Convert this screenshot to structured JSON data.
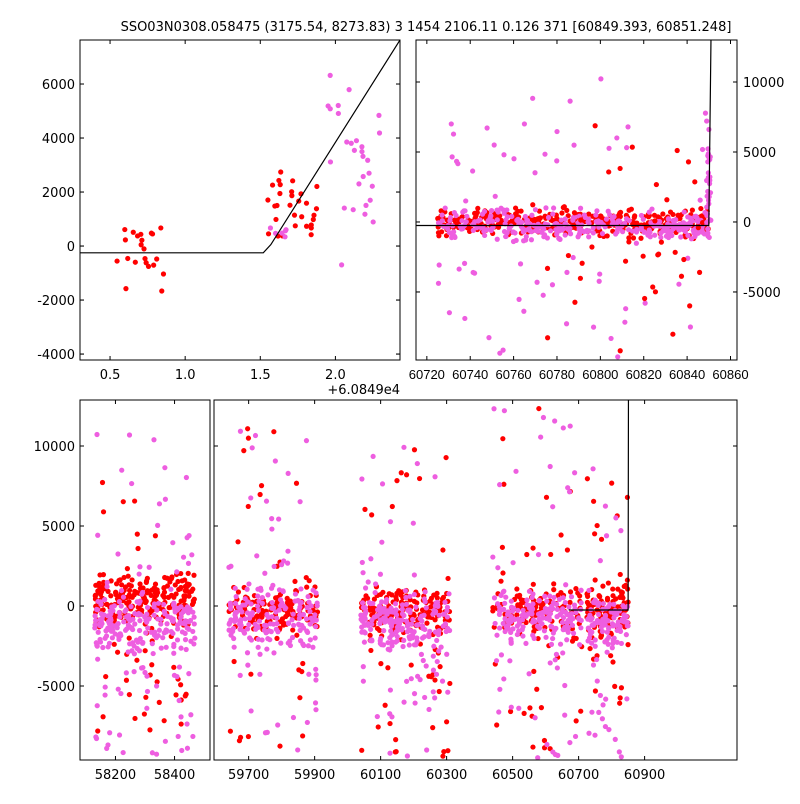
{
  "title": "SSO03N0308.058475 (3175.54, 8273.83)   3 1454 2106.11 0.126 371 [60849.393, 60851.248]",
  "offset_label": "+6.0849e4",
  "colors": {
    "red": "#ff0000",
    "pink": "#ee5ee0",
    "line": "#000000"
  },
  "chart_data": [
    {
      "type": "scatter",
      "name": "phase-panel",
      "xlim": [
        0.3,
        2.43
      ],
      "ylim": [
        -4220,
        7630
      ],
      "xticks": [
        "0.5",
        "1.0",
        "1.5",
        "2.0"
      ],
      "xtick_values": [
        0.5,
        1.0,
        1.5,
        2.0
      ],
      "yticks": [
        "-4000",
        "-2000",
        "0",
        "2000",
        "4000",
        "6000"
      ],
      "ytick_values": [
        -4000,
        -2000,
        0,
        2000,
        4000,
        6000
      ],
      "clusters": [
        {
          "color": "red",
          "x": [
            0.5,
            0.92
          ],
          "y": [
            -1700,
            1000
          ],
          "n": 22
        },
        {
          "color": "red",
          "x": [
            1.52,
            1.88
          ],
          "y": [
            300,
            2400
          ],
          "n": 30
        },
        {
          "color": "pink",
          "x": [
            1.55,
            1.7
          ],
          "y": [
            400,
            800
          ],
          "n": 6
        },
        {
          "color": "pink",
          "x": [
            1.95,
            2.3
          ],
          "y": [
            400,
            6900
          ],
          "n": 30
        }
      ],
      "model_line": [
        [
          0.3,
          -250
        ],
        [
          1.52,
          -250
        ],
        [
          1.57,
          50
        ],
        [
          2.43,
          7630
        ]
      ]
    },
    {
      "type": "scatter",
      "name": "time-zoom-panel",
      "xlim": [
        60715,
        60863
      ],
      "ylim": [
        -9860,
        13000
      ],
      "xticks": [
        "60720",
        "60740",
        "60760",
        "60780",
        "60800",
        "60820",
        "60840",
        "60860"
      ],
      "xtick_values": [
        60720,
        60740,
        60760,
        60780,
        60800,
        60820,
        60840,
        60860
      ],
      "yticks": [
        "-5000",
        "0",
        "5000",
        "10000"
      ],
      "ytick_values": [
        -5000,
        0,
        5000,
        10000
      ],
      "clusters": [
        {
          "color": "red",
          "x": [
            60725,
            60850
          ],
          "y": [
            -800,
            800
          ],
          "n": 350
        },
        {
          "color": "pink",
          "x": [
            60725,
            60850
          ],
          "y": [
            -1200,
            600
          ],
          "n": 300
        },
        {
          "color": "pink",
          "x": [
            60725,
            60850
          ],
          "y": [
            -8500,
            8500
          ],
          "n": 70
        },
        {
          "color": "red",
          "x": [
            60770,
            60850
          ],
          "y": [
            -7000,
            5000
          ],
          "n": 40
        },
        {
          "color": "pink",
          "x": [
            60849,
            60851
          ],
          "y": [
            -500,
            7000
          ],
          "n": 30
        }
      ],
      "model_line": [
        [
          60715,
          -250
        ],
        [
          60850,
          -250
        ],
        [
          60851,
          13000
        ]
      ]
    },
    {
      "type": "scatter",
      "name": "full-lightcurve-panel",
      "ylim": [
        -9625,
        12875
      ],
      "segments": [
        {
          "xlim": [
            58080,
            58520
          ],
          "xticks": [
            "58200",
            "58400"
          ],
          "xtick_values": [
            58200,
            58400
          ]
        },
        {
          "xlim": [
            59595,
            61180
          ],
          "xticks": [
            "59700",
            "59900",
            "60100",
            "60300",
            "60500",
            "60700",
            "60900"
          ],
          "xtick_values": [
            59700,
            59900,
            60100,
            60300,
            60500,
            60700,
            60900
          ]
        }
      ],
      "yticks": [
        "-5000",
        "0",
        "5000",
        "10000"
      ],
      "ytick_values": [
        -5000,
        0,
        5000,
        10000
      ],
      "clusters": [
        {
          "color": "red",
          "x": [
            58130,
            58470
          ],
          "y": [
            -1000,
            2000
          ],
          "n": 260,
          "spread": [
            -9000,
            9000
          ]
        },
        {
          "color": "pink",
          "x": [
            58130,
            58470
          ],
          "y": [
            -2500,
            500
          ],
          "n": 260,
          "spread": [
            -9500,
            12300
          ]
        },
        {
          "color": "red",
          "x": [
            59640,
            59910
          ],
          "y": [
            -1500,
            1000
          ],
          "n": 150,
          "spread": [
            -9000,
            12000
          ]
        },
        {
          "color": "pink",
          "x": [
            59640,
            59910
          ],
          "y": [
            -2500,
            1000
          ],
          "n": 200,
          "spread": [
            -9500,
            12000
          ]
        },
        {
          "color": "red",
          "x": [
            60040,
            60310
          ],
          "y": [
            -1500,
            1000
          ],
          "n": 200,
          "spread": [
            -9500,
            10000
          ]
        },
        {
          "color": "pink",
          "x": [
            60040,
            60310
          ],
          "y": [
            -2500,
            500
          ],
          "n": 230,
          "spread": [
            -9500,
            10600
          ]
        },
        {
          "color": "red",
          "x": [
            60440,
            60710
          ],
          "y": [
            -1500,
            1000
          ],
          "n": 150,
          "spread": [
            -9300,
            12600
          ]
        },
        {
          "color": "pink",
          "x": [
            60440,
            60710
          ],
          "y": [
            -2000,
            500
          ],
          "n": 200,
          "spread": [
            -9500,
            12600
          ]
        },
        {
          "color": "red",
          "x": [
            60725,
            60850
          ],
          "y": [
            -1500,
            1000
          ],
          "n": 120,
          "spread": [
            -7000,
            8000
          ]
        },
        {
          "color": "pink",
          "x": [
            60725,
            60850
          ],
          "y": [
            -2500,
            500
          ],
          "n": 120,
          "spread": [
            -9500,
            8800
          ]
        }
      ],
      "model_line": [
        [
          60670,
          -250
        ],
        [
          60850,
          -250
        ],
        [
          60851,
          12875
        ]
      ]
    }
  ]
}
